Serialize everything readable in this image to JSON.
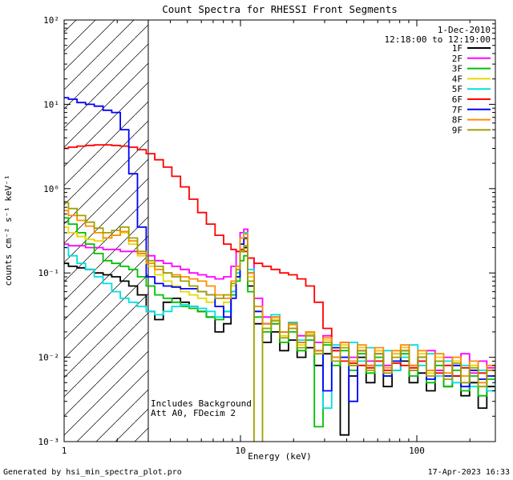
{
  "title": "Count Spectra for RHESSI Front Segments",
  "header": {
    "date": "1-Dec-2010",
    "time_range": "12:18:00 to 12:19:00"
  },
  "annotations": {
    "line1": "Includes Background",
    "line2": "Att A0, FDecim 2"
  },
  "footer": {
    "left": "Generated by hsi_min_spectra_plot.pro",
    "right": "17-Apr-2023 16:33"
  },
  "axes": {
    "xlabel": "Energy (keV)",
    "ylabel": "counts cm⁻² s⁻¹ keV⁻¹",
    "x_ticks": [
      {
        "label": "1",
        "value": 1
      },
      {
        "label": "10",
        "value": 10
      },
      {
        "label": "100",
        "value": 100
      }
    ],
    "y_ticks": [
      {
        "label": "10²",
        "value": 100
      },
      {
        "label": "10¹",
        "value": 10
      },
      {
        "label": "10⁰",
        "value": 1
      },
      {
        "label": "10⁻¹",
        "value": 0.1
      },
      {
        "label": "10⁻²",
        "value": 0.01
      },
      {
        "label": "10⁻³",
        "value": 0.001
      }
    ]
  },
  "chart_data": {
    "type": "line",
    "title": "Count Spectra for RHESSI Front Segments",
    "x_axis": {
      "label": "Energy (keV)",
      "scale": "log",
      "range": [
        1,
        280
      ]
    },
    "y_axis": {
      "label": "counts cm^-2 s^-1 keV^-1",
      "scale": "log",
      "range": [
        0.001,
        100
      ]
    },
    "hatched_region_kev": [
      1,
      3
    ],
    "legend_position": "top-right",
    "x": [
      1.0,
      1.12,
      1.25,
      1.4,
      1.57,
      1.76,
      1.97,
      2.2,
      2.46,
      2.76,
      3.09,
      3.45,
      3.86,
      4.32,
      4.84,
      5.41,
      6.06,
      6.78,
      7.59,
      8.49,
      9.2,
      9.7,
      10.2,
      10.7,
      11.3,
      12.6,
      14.1,
      15.8,
      17.7,
      19.8,
      22.2,
      24.8,
      27.8,
      31.1,
      34.8,
      38.9,
      43.6,
      48.8,
      54.6,
      61.1,
      68.4,
      76.5,
      85.6,
      95.8,
      107.2,
      120.0,
      134.3,
      150.3,
      168.2,
      188.3,
      210.7,
      235.8,
      263.9,
      295.3
    ],
    "series": [
      {
        "name": "1F",
        "color": "#000000",
        "values": [
          0.13,
          0.12,
          0.115,
          0.11,
          0.1,
          0.095,
          0.09,
          0.08,
          0.07,
          0.055,
          0.035,
          0.028,
          0.045,
          0.05,
          0.045,
          0.04,
          0.035,
          0.03,
          0.02,
          0.025,
          0.06,
          0.09,
          0.18,
          0.2,
          0.07,
          0.025,
          0.015,
          0.02,
          0.012,
          0.016,
          0.01,
          0.013,
          0.008,
          0.011,
          0.01,
          0.0012,
          0.006,
          0.01,
          0.005,
          0.008,
          0.0045,
          0.007,
          0.009,
          0.005,
          0.0065,
          0.004,
          0.007,
          0.0045,
          0.006,
          0.0035,
          0.005,
          0.0025,
          0.0045,
          0.004
        ]
      },
      {
        "name": "2F",
        "color": "#ff00ff",
        "values": [
          0.22,
          0.21,
          0.21,
          0.2,
          0.2,
          0.19,
          0.19,
          0.18,
          0.18,
          0.17,
          0.16,
          0.14,
          0.13,
          0.12,
          0.11,
          0.1,
          0.095,
          0.09,
          0.085,
          0.09,
          0.12,
          0.18,
          0.3,
          0.33,
          0.15,
          0.05,
          0.03,
          0.025,
          0.02,
          0.022,
          0.018,
          0.02,
          0.015,
          0.018,
          0.012,
          0.015,
          0.01,
          0.013,
          0.009,
          0.012,
          0.008,
          0.011,
          0.013,
          0.008,
          0.01,
          0.012,
          0.007,
          0.01,
          0.008,
          0.011,
          0.0065,
          0.009,
          0.0075,
          0.008
        ]
      },
      {
        "name": "3F",
        "color": "#00c000",
        "values": [
          0.45,
          0.38,
          0.3,
          0.22,
          0.17,
          0.14,
          0.13,
          0.12,
          0.11,
          0.09,
          0.07,
          0.055,
          0.05,
          0.045,
          0.04,
          0.038,
          0.035,
          0.03,
          0.028,
          0.035,
          0.055,
          0.08,
          0.14,
          0.16,
          0.06,
          0.03,
          0.02,
          0.025,
          0.015,
          0.02,
          0.012,
          0.016,
          0.0015,
          0.014,
          0.008,
          0.012,
          0.007,
          0.011,
          0.0065,
          0.01,
          0.006,
          0.009,
          0.011,
          0.006,
          0.009,
          0.005,
          0.008,
          0.0045,
          0.007,
          0.004,
          0.006,
          0.0035,
          0.0055,
          0.005
        ]
      },
      {
        "name": "4F",
        "color": "#e8d800",
        "values": [
          0.35,
          0.3,
          0.27,
          0.25,
          0.24,
          0.26,
          0.28,
          0.3,
          0.22,
          0.16,
          0.12,
          0.095,
          0.08,
          0.07,
          0.06,
          0.055,
          0.05,
          0.045,
          0.04,
          0.045,
          0.07,
          0.1,
          0.22,
          0.25,
          0.09,
          0.035,
          0.022,
          0.028,
          0.018,
          0.024,
          0.014,
          0.019,
          0.011,
          0.016,
          0.009,
          0.014,
          0.008,
          0.013,
          0.0075,
          0.012,
          0.007,
          0.011,
          0.013,
          0.0075,
          0.011,
          0.0065,
          0.01,
          0.006,
          0.009,
          0.005,
          0.008,
          0.0045,
          0.007,
          0.006
        ]
      },
      {
        "name": "5F",
        "color": "#00e0e0",
        "values": [
          0.2,
          0.16,
          0.13,
          0.11,
          0.09,
          0.075,
          0.06,
          0.05,
          0.045,
          0.04,
          0.035,
          0.032,
          0.035,
          0.04,
          0.042,
          0.04,
          0.038,
          0.035,
          0.03,
          0.035,
          0.06,
          0.1,
          0.26,
          0.3,
          0.11,
          0.04,
          0.025,
          0.032,
          0.02,
          0.026,
          0.016,
          0.02,
          0.012,
          0.0025,
          0.014,
          0.01,
          0.015,
          0.009,
          0.013,
          0.008,
          0.012,
          0.007,
          0.01,
          0.014,
          0.008,
          0.011,
          0.006,
          0.009,
          0.005,
          0.008,
          0.0045,
          0.007,
          0.004,
          0.006
        ]
      },
      {
        "name": "6F",
        "color": "#ff0000",
        "values": [
          3.0,
          3.1,
          3.2,
          3.25,
          3.3,
          3.3,
          3.25,
          3.2,
          3.1,
          2.9,
          2.6,
          2.2,
          1.8,
          1.4,
          1.05,
          0.75,
          0.52,
          0.38,
          0.28,
          0.22,
          0.19,
          0.18,
          0.19,
          0.18,
          0.15,
          0.13,
          0.12,
          0.11,
          0.1,
          0.095,
          0.085,
          0.07,
          0.045,
          0.022,
          0.012,
          0.009,
          0.0085,
          0.008,
          0.0075,
          0.009,
          0.007,
          0.0085,
          0.008,
          0.0075,
          0.009,
          0.007,
          0.0065,
          0.008,
          0.006,
          0.0075,
          0.007,
          0.0065,
          0.007,
          0.006
        ]
      },
      {
        "name": "7F",
        "color": "#0000ff",
        "values": [
          12,
          11.5,
          10.5,
          10,
          9.5,
          8.5,
          8.0,
          5.0,
          1.5,
          0.35,
          0.09,
          0.075,
          0.07,
          0.068,
          0.065,
          0.065,
          0.06,
          0.055,
          0.04,
          0.03,
          0.05,
          0.09,
          0.22,
          0.26,
          0.1,
          0.035,
          0.025,
          0.03,
          0.02,
          0.025,
          0.015,
          0.018,
          0.012,
          0.004,
          0.013,
          0.01,
          0.003,
          0.012,
          0.008,
          0.011,
          0.006,
          0.009,
          0.012,
          0.007,
          0.01,
          0.0055,
          0.009,
          0.006,
          0.008,
          0.0045,
          0.007,
          0.0055,
          0.006,
          0.005
        ]
      },
      {
        "name": "8F",
        "color": "#ff8c00",
        "values": [
          0.55,
          0.48,
          0.42,
          0.36,
          0.3,
          0.26,
          0.28,
          0.31,
          0.24,
          0.17,
          0.13,
          0.11,
          0.1,
          0.095,
          0.09,
          0.085,
          0.08,
          0.07,
          0.055,
          0.05,
          0.08,
          0.12,
          0.26,
          0.29,
          0.1,
          0.04,
          0.025,
          0.03,
          0.02,
          0.025,
          0.015,
          0.02,
          0.012,
          0.017,
          0.01,
          0.015,
          0.009,
          0.014,
          0.008,
          0.013,
          0.0075,
          0.012,
          0.014,
          0.008,
          0.012,
          0.007,
          0.011,
          0.0065,
          0.01,
          0.006,
          0.009,
          0.005,
          0.008,
          0.007
        ]
      },
      {
        "name": "9F",
        "color": "#a0a000",
        "values": [
          0.68,
          0.58,
          0.48,
          0.4,
          0.34,
          0.3,
          0.32,
          0.35,
          0.26,
          0.18,
          0.14,
          0.12,
          0.1,
          0.09,
          0.08,
          0.07,
          0.06,
          0.055,
          0.05,
          0.055,
          0.075,
          0.11,
          0.18,
          0.21,
          0.08,
          0.0008,
          0.022,
          0.027,
          0.017,
          0.022,
          0.013,
          0.018,
          0.011,
          0.015,
          0.009,
          0.013,
          0.008,
          0.012,
          0.007,
          0.011,
          0.0065,
          0.01,
          0.012,
          0.007,
          0.01,
          0.006,
          0.009,
          0.0055,
          0.0085,
          0.005,
          0.0075,
          0.0045,
          0.007,
          0.0055
        ]
      }
    ]
  }
}
